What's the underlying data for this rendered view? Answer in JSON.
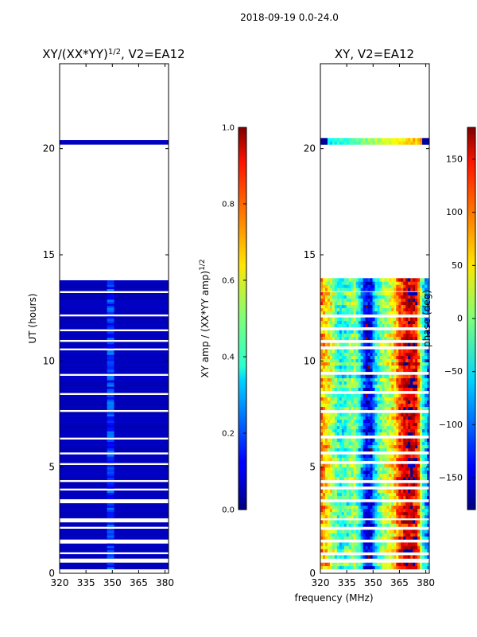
{
  "chart_data": [
    {
      "type": "heatmap",
      "suptitle": "2018-09-19 0.0-24.0",
      "title": "XY/(XX*YY)^1/2, V2=EA12",
      "title_main": "XY/(XX*YY)",
      "title_exp": "1/2",
      "title_rest": ", V2=EA12",
      "xlabel": "",
      "ylabel": "UT (hours)",
      "xlim": [
        320,
        382
      ],
      "ylim": [
        0,
        24
      ],
      "x_ticks": [
        "320",
        "335",
        "350",
        "365",
        "380"
      ],
      "x_tick_values": [
        320,
        335,
        350,
        365,
        380
      ],
      "y_ticks": [
        "0",
        "5",
        "10",
        "15",
        "20"
      ],
      "y_tick_values": [
        0,
        5,
        10,
        15,
        20
      ],
      "colormap": "jet",
      "colorbar": {
        "label": "XY amp / (XX*YY amp)^1/2",
        "label_main": "XY amp / (XX*YY amp)",
        "label_exp": "1/2",
        "range": [
          0.0,
          1.0
        ],
        "ticks": [
          "0.0",
          "0.2",
          "0.4",
          "0.6",
          "0.8",
          "1.0"
        ],
        "tick_values": [
          0.0,
          0.2,
          0.4,
          0.6,
          0.8,
          1.0
        ]
      },
      "data_rows_hours": [
        [
          0.2,
          0.5
        ],
        [
          0.7,
          1.4
        ],
        [
          1.6,
          2.4
        ],
        [
          2.6,
          3.3
        ],
        [
          3.5,
          13.2
        ],
        [
          13.3,
          13.8
        ],
        [
          20.2,
          20.4
        ]
      ],
      "gap_rows_hours": [
        0.85,
        2.1,
        3.9,
        4.3,
        5.1,
        5.6,
        6.3,
        7.6,
        8.4,
        9.3,
        10.5,
        10.9,
        11.4,
        12.1
      ],
      "bright_band_mhz": [
        347,
        351
      ],
      "bright_band_value": 0.2,
      "background_value": 0.05
    },
    {
      "type": "heatmap",
      "title": "XY, V2=EA12",
      "xlabel": "frequency (MHz)",
      "ylabel": "",
      "xlim": [
        320,
        382
      ],
      "ylim": [
        0,
        24
      ],
      "x_ticks": [
        "320",
        "335",
        "350",
        "365",
        "380"
      ],
      "x_tick_values": [
        320,
        335,
        350,
        365,
        380
      ],
      "y_ticks": [
        "0",
        "5",
        "10",
        "15",
        "20"
      ],
      "y_tick_values": [
        0,
        5,
        10,
        15,
        20
      ],
      "colormap": "jet",
      "colorbar": {
        "label": "phase (deg)",
        "range": [
          -180,
          180
        ],
        "ticks": [
          "−150",
          "−100",
          "−50",
          "0",
          "50",
          "100",
          "150"
        ],
        "tick_values": [
          -150,
          -100,
          -50,
          0,
          50,
          100,
          150
        ]
      },
      "phase_profile_deg": [
        {
          "mhz": 320,
          "deg": 90
        },
        {
          "mhz": 326,
          "deg": 30
        },
        {
          "mhz": 331,
          "deg": -40
        },
        {
          "mhz": 335,
          "deg": -20
        },
        {
          "mhz": 340,
          "deg": 10
        },
        {
          "mhz": 343,
          "deg": -60
        },
        {
          "mhz": 346,
          "deg": -150
        },
        {
          "mhz": 349,
          "deg": -130
        },
        {
          "mhz": 352,
          "deg": -40
        },
        {
          "mhz": 355,
          "deg": 0
        },
        {
          "mhz": 358,
          "deg": 20
        },
        {
          "mhz": 362,
          "deg": 50
        },
        {
          "mhz": 365,
          "deg": 110
        },
        {
          "mhz": 370,
          "deg": 160
        },
        {
          "mhz": 375,
          "deg": 140
        },
        {
          "mhz": 378,
          "deg": -20
        },
        {
          "mhz": 382,
          "deg": -120
        }
      ]
    }
  ]
}
